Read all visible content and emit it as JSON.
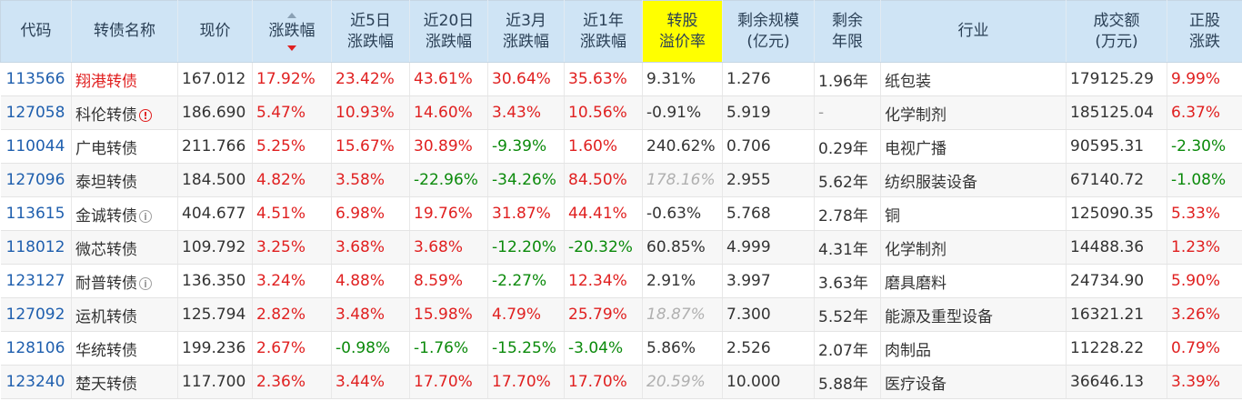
{
  "headers": {
    "code": "代码",
    "name": "转债名称",
    "price": "现价",
    "change": [
      "涨跌幅"
    ],
    "chg5d": [
      "近5日",
      "涨跌幅"
    ],
    "chg20d": [
      "近20日",
      "涨跌幅"
    ],
    "chg3m": [
      "近3月",
      "涨跌幅"
    ],
    "chg1y": [
      "近1年",
      "涨跌幅"
    ],
    "premium": [
      "转股",
      "溢价率"
    ],
    "remain_scale": [
      "剩余规模",
      "(亿元)"
    ],
    "remain_years": [
      "剩余",
      "年限"
    ],
    "industry": "行业",
    "turnover": [
      "成交额",
      "(万元)"
    ],
    "stock_chg": [
      "正股",
      "涨跌"
    ]
  },
  "colors": {
    "header_bg": "#cfe4f5",
    "highlight": "#ffff00",
    "up": "#e02020",
    "down": "#0b8a0b",
    "link": "#1f5fae"
  },
  "rows": [
    {
      "code": "113566",
      "name": "翔港转债",
      "name_hot": true,
      "badge": "",
      "price": "167.012",
      "change": "17.92%",
      "chg5d": "23.42%",
      "chg20d": "43.61%",
      "chg3m": "30.64%",
      "chg1y": "35.63%",
      "premium": "9.31%",
      "premium_muted": false,
      "remain_scale": "1.276",
      "remain_years": "1.96年",
      "industry": "纸包装",
      "turnover": "179125.29",
      "stock_chg": "9.99%"
    },
    {
      "code": "127058",
      "name": "科伦转债",
      "name_hot": false,
      "badge": "alert",
      "price": "186.690",
      "change": "5.47%",
      "chg5d": "10.93%",
      "chg20d": "14.60%",
      "chg3m": "3.43%",
      "chg1y": "10.56%",
      "premium": "-0.91%",
      "premium_muted": false,
      "remain_scale": "5.919",
      "remain_years": "-",
      "industry": "化学制剂",
      "turnover": "185125.04",
      "stock_chg": "6.37%"
    },
    {
      "code": "110044",
      "name": "广电转债",
      "name_hot": false,
      "badge": "",
      "price": "211.766",
      "change": "5.25%",
      "chg5d": "15.67%",
      "chg20d": "30.89%",
      "chg3m": "-9.39%",
      "chg1y": "1.60%",
      "premium": "240.62%",
      "premium_muted": false,
      "remain_scale": "0.706",
      "remain_years": "0.29年",
      "industry": "电视广播",
      "turnover": "90595.31",
      "stock_chg": "-2.30%"
    },
    {
      "code": "127096",
      "name": "泰坦转债",
      "name_hot": false,
      "badge": "",
      "price": "184.500",
      "change": "4.82%",
      "chg5d": "3.58%",
      "chg20d": "-22.96%",
      "chg3m": "-34.26%",
      "chg1y": "84.50%",
      "premium": "178.16%",
      "premium_muted": true,
      "remain_scale": "2.955",
      "remain_years": "5.62年",
      "industry": "纺织服装设备",
      "turnover": "67140.72",
      "stock_chg": "-1.08%"
    },
    {
      "code": "113615",
      "name": "金诚转债",
      "name_hot": false,
      "badge": "info",
      "price": "404.677",
      "change": "4.51%",
      "chg5d": "6.98%",
      "chg20d": "19.76%",
      "chg3m": "31.87%",
      "chg1y": "44.41%",
      "premium": "-0.63%",
      "premium_muted": false,
      "remain_scale": "5.768",
      "remain_years": "2.78年",
      "industry": "铜",
      "turnover": "125090.35",
      "stock_chg": "5.33%"
    },
    {
      "code": "118012",
      "name": "微芯转债",
      "name_hot": false,
      "badge": "",
      "price": "109.792",
      "change": "3.25%",
      "chg5d": "3.68%",
      "chg20d": "3.68%",
      "chg3m": "-12.20%",
      "chg1y": "-20.32%",
      "premium": "60.85%",
      "premium_muted": false,
      "remain_scale": "4.999",
      "remain_years": "4.31年",
      "industry": "化学制剂",
      "turnover": "14488.36",
      "stock_chg": "1.23%"
    },
    {
      "code": "123127",
      "name": "耐普转债",
      "name_hot": false,
      "badge": "info",
      "price": "136.350",
      "change": "3.24%",
      "chg5d": "4.88%",
      "chg20d": "8.59%",
      "chg3m": "-2.27%",
      "chg1y": "12.34%",
      "premium": "2.91%",
      "premium_muted": false,
      "remain_scale": "3.997",
      "remain_years": "3.63年",
      "industry": "磨具磨料",
      "turnover": "24734.90",
      "stock_chg": "5.90%"
    },
    {
      "code": "127092",
      "name": "运机转债",
      "name_hot": false,
      "badge": "",
      "price": "125.794",
      "change": "2.82%",
      "chg5d": "3.48%",
      "chg20d": "15.98%",
      "chg3m": "4.79%",
      "chg1y": "25.79%",
      "premium": "18.87%",
      "premium_muted": true,
      "remain_scale": "7.300",
      "remain_years": "5.52年",
      "industry": "能源及重型设备",
      "turnover": "16321.21",
      "stock_chg": "3.26%"
    },
    {
      "code": "128106",
      "name": "华统转债",
      "name_hot": false,
      "badge": "",
      "price": "199.236",
      "change": "2.67%",
      "chg5d": "-0.98%",
      "chg20d": "-1.76%",
      "chg3m": "-15.25%",
      "chg1y": "-3.04%",
      "premium": "5.86%",
      "premium_muted": false,
      "remain_scale": "2.526",
      "remain_years": "2.07年",
      "industry": "肉制品",
      "turnover": "11228.22",
      "stock_chg": "0.79%"
    },
    {
      "code": "123240",
      "name": "楚天转债",
      "name_hot": false,
      "badge": "",
      "price": "117.700",
      "change": "2.36%",
      "chg5d": "3.44%",
      "chg20d": "17.70%",
      "chg3m": "17.70%",
      "chg1y": "17.70%",
      "premium": "20.59%",
      "premium_muted": true,
      "remain_scale": "10.000",
      "remain_years": "5.88年",
      "industry": "医疗设备",
      "turnover": "36646.13",
      "stock_chg": "3.39%"
    }
  ]
}
